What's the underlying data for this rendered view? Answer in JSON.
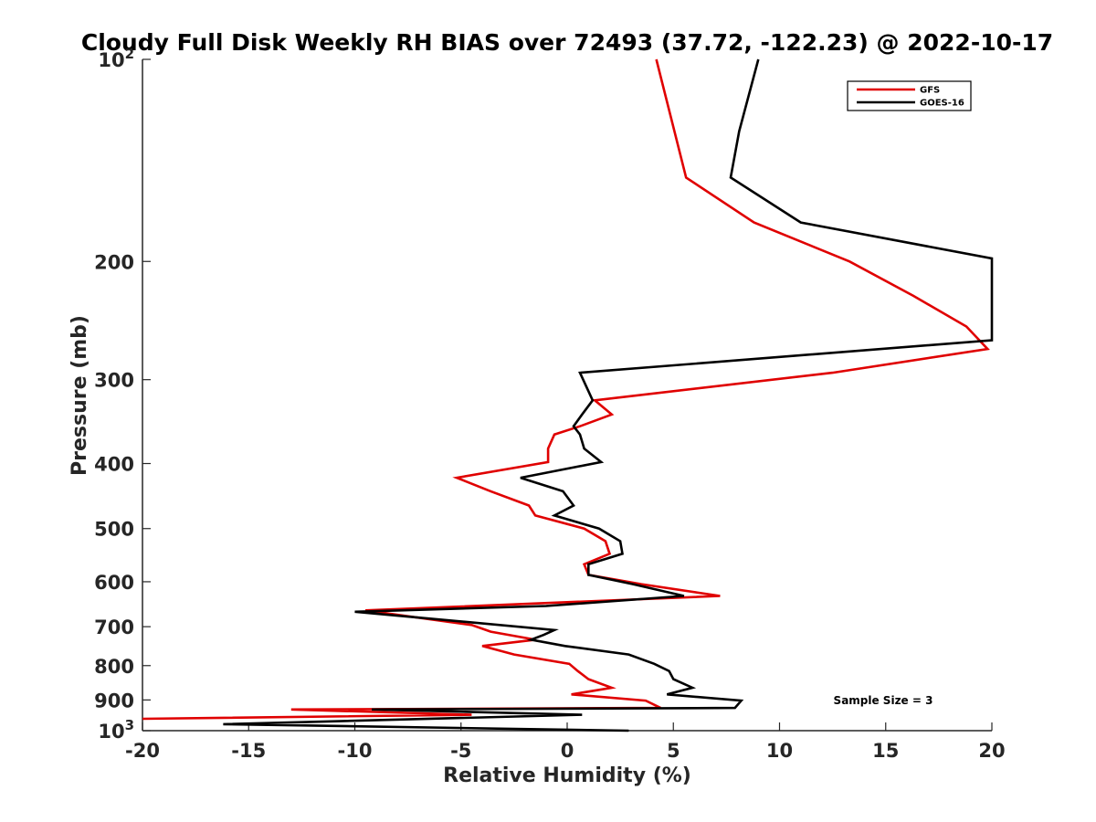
{
  "chart_data": {
    "type": "line",
    "title": "Cloudy Full Disk Weekly RH BIAS over 72493 (37.72, -122.23) @ 2022-10-17",
    "xlabel": "Relative Humidity (%)",
    "ylabel": "Pressure (mb)",
    "xlim": [
      -20,
      20
    ],
    "ylim": [
      100,
      1000
    ],
    "y_scale": "log",
    "y_reversed": true,
    "grid": false,
    "x_ticks": [
      -20,
      -15,
      -10,
      -5,
      0,
      5,
      10,
      15,
      20
    ],
    "x_tick_labels": [
      "-20",
      "-15",
      "-10",
      "-5",
      "0",
      "5",
      "10",
      "15",
      "20"
    ],
    "y_ticks": [
      100,
      200,
      300,
      400,
      500,
      600,
      700,
      800,
      900,
      1000
    ],
    "y_tick_labels": [
      {
        "base": "10",
        "exp": "2"
      },
      {
        "base": "200",
        "exp": ""
      },
      {
        "base": "300",
        "exp": ""
      },
      {
        "base": "400",
        "exp": ""
      },
      {
        "base": "500",
        "exp": ""
      },
      {
        "base": "600",
        "exp": ""
      },
      {
        "base": "700",
        "exp": ""
      },
      {
        "base": "800",
        "exp": ""
      },
      {
        "base": "900",
        "exp": ""
      },
      {
        "base": "10",
        "exp": "3"
      }
    ],
    "legend_position": "top-right",
    "annotation": "Sample Size = 3",
    "series": [
      {
        "name": "GFS",
        "color": "#e00000",
        "points": [
          [
            4.2,
            100
          ],
          [
            5.6,
            150
          ],
          [
            8.8,
            175
          ],
          [
            13.3,
            200
          ],
          [
            16.3,
            225
          ],
          [
            18.8,
            250
          ],
          [
            19.8,
            270
          ],
          [
            12.5,
            293
          ],
          [
            1.3,
            322
          ],
          [
            2.1,
            338
          ],
          [
            0.6,
            352
          ],
          [
            -0.6,
            362
          ],
          [
            -0.9,
            380
          ],
          [
            -0.9,
            398
          ],
          [
            -5.2,
            420
          ],
          [
            -3.6,
            440
          ],
          [
            -1.8,
            462
          ],
          [
            -1.5,
            478
          ],
          [
            0.8,
            500
          ],
          [
            1.8,
            522
          ],
          [
            2.0,
            545
          ],
          [
            0.8,
            565
          ],
          [
            1.0,
            586
          ],
          [
            3.5,
            605
          ],
          [
            7.2,
            630
          ],
          [
            -9.5,
            662
          ],
          [
            -4.5,
            696
          ],
          [
            -3.6,
            712
          ],
          [
            -1.5,
            732
          ],
          [
            -4.0,
            748
          ],
          [
            -2.5,
            770
          ],
          [
            0.1,
            795
          ],
          [
            0.5,
            815
          ],
          [
            1.0,
            838
          ],
          [
            2.1,
            863
          ],
          [
            0.2,
            883
          ],
          [
            3.7,
            902
          ],
          [
            4.4,
            925
          ],
          [
            -13.0,
            930
          ],
          [
            -4.5,
            947
          ],
          [
            -20.0,
            960
          ]
        ]
      },
      {
        "name": "GOES-16",
        "color": "#000000",
        "points": [
          [
            9.0,
            100
          ],
          [
            8.1,
            128
          ],
          [
            7.7,
            150
          ],
          [
            11.0,
            175
          ],
          [
            20.0,
            198
          ],
          [
            20.0,
            262
          ],
          [
            0.6,
            293
          ],
          [
            1.2,
            322
          ],
          [
            0.7,
            338
          ],
          [
            0.3,
            352
          ],
          [
            0.6,
            362
          ],
          [
            0.8,
            380
          ],
          [
            1.6,
            398
          ],
          [
            -2.2,
            420
          ],
          [
            -0.2,
            440
          ],
          [
            0.3,
            462
          ],
          [
            -0.6,
            478
          ],
          [
            1.5,
            500
          ],
          [
            2.5,
            522
          ],
          [
            2.6,
            545
          ],
          [
            1.0,
            565
          ],
          [
            1.0,
            586
          ],
          [
            3.1,
            605
          ],
          [
            5.5,
            630
          ],
          [
            -1.0,
            652
          ],
          [
            -10.0,
            665
          ],
          [
            -0.6,
            708
          ],
          [
            -1.1,
            720
          ],
          [
            -1.7,
            732
          ],
          [
            -0.1,
            748
          ],
          [
            2.9,
            770
          ],
          [
            4.1,
            795
          ],
          [
            4.8,
            815
          ],
          [
            5.0,
            838
          ],
          [
            5.9,
            863
          ],
          [
            4.7,
            883
          ],
          [
            8.2,
            902
          ],
          [
            7.9,
            925
          ],
          [
            -9.2,
            930
          ],
          [
            0.7,
            947
          ],
          [
            -16.2,
            978
          ],
          [
            2.9,
            1000
          ]
        ]
      }
    ]
  }
}
